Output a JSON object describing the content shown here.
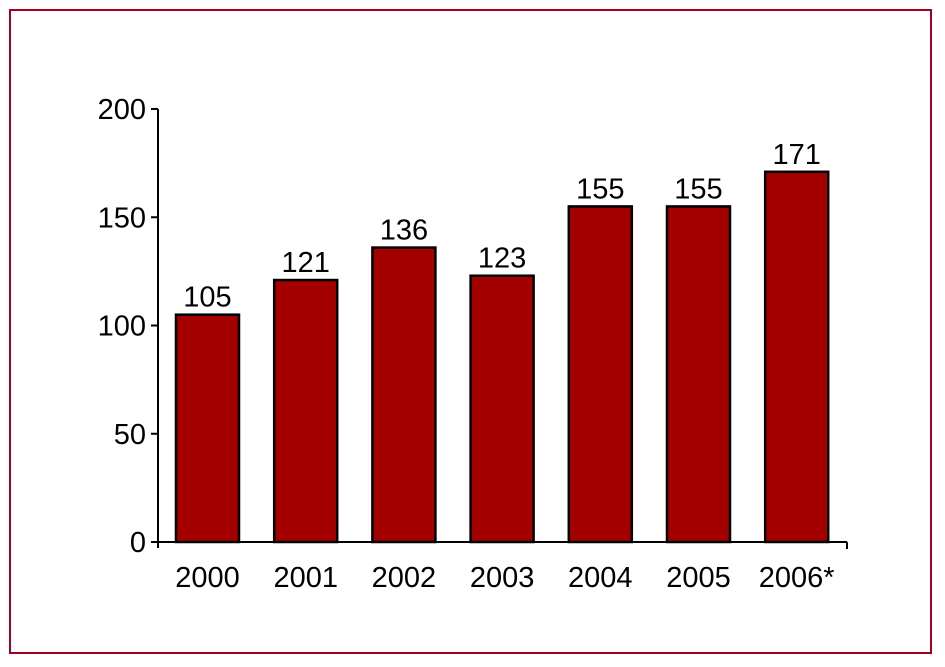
{
  "colors": {
    "frame": "#a50021",
    "bar_fill": "#a50000",
    "bar_stroke": "#000000",
    "axis": "#000000"
  },
  "chart_data": {
    "type": "bar",
    "categories": [
      "2000",
      "2001",
      "2002",
      "2003",
      "2004",
      "2005",
      "2006*"
    ],
    "values": [
      105,
      121,
      136,
      123,
      155,
      155,
      171
    ],
    "data_labels": [
      "105",
      "121",
      "136",
      "123",
      "155",
      "155",
      "171"
    ],
    "y_ticks": [
      "0",
      "50",
      "100",
      "150",
      "200"
    ],
    "ylim": [
      0,
      200
    ],
    "title": "",
    "xlabel": "",
    "ylabel": "",
    "grid": false,
    "legend": "none"
  }
}
